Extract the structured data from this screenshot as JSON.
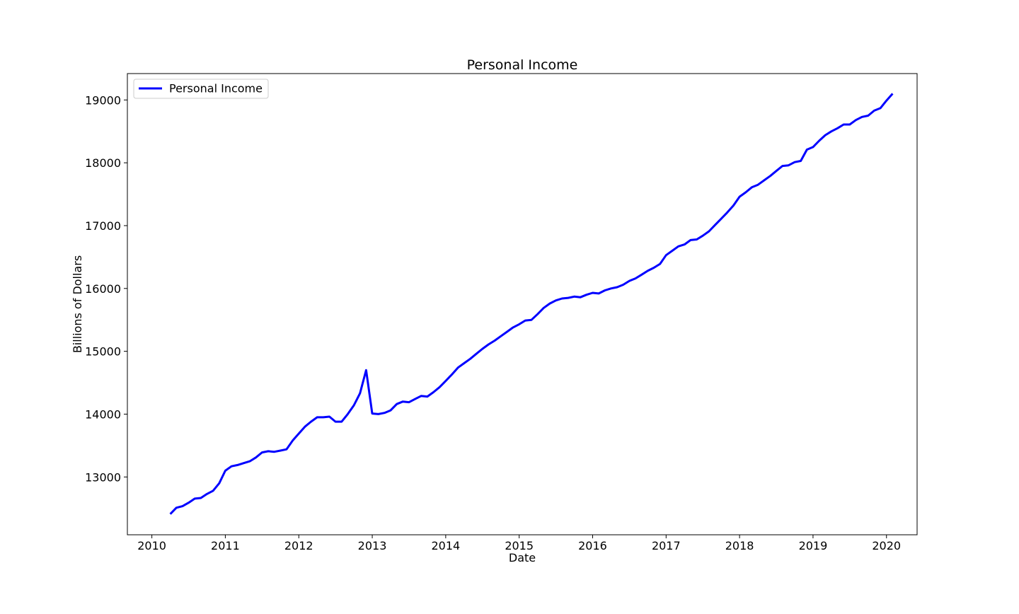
{
  "chart_data": {
    "type": "line",
    "title": "Personal Income",
    "xlabel": "Date",
    "ylabel": "Billions of Dollars",
    "x_ticks": [
      "2010",
      "2011",
      "2012",
      "2013",
      "2014",
      "2015",
      "2016",
      "2017",
      "2018",
      "2019",
      "2020"
    ],
    "y_ticks": [
      "13000",
      "14000",
      "15000",
      "16000",
      "17000",
      "18000",
      "19000"
    ],
    "xlim": [
      "2009-09",
      "2020-06"
    ],
    "ylim": [
      12080,
      19420
    ],
    "grid": false,
    "legend_position": "top-left",
    "series": [
      {
        "name": "Personal Income",
        "color": "#0000ff",
        "x": [
          "2010-04",
          "2010-05",
          "2010-06",
          "2010-07",
          "2010-08",
          "2010-09",
          "2010-10",
          "2010-11",
          "2010-12",
          "2011-01",
          "2011-02",
          "2011-03",
          "2011-04",
          "2011-05",
          "2011-06",
          "2011-07",
          "2011-08",
          "2011-09",
          "2011-10",
          "2011-11",
          "2011-12",
          "2012-01",
          "2012-02",
          "2012-03",
          "2012-04",
          "2012-05",
          "2012-06",
          "2012-07",
          "2012-08",
          "2012-09",
          "2012-10",
          "2012-11",
          "2012-12",
          "2013-01",
          "2013-02",
          "2013-03",
          "2013-04",
          "2013-05",
          "2013-06",
          "2013-07",
          "2013-08",
          "2013-09",
          "2013-10",
          "2013-11",
          "2013-12",
          "2014-01",
          "2014-02",
          "2014-03",
          "2014-04",
          "2014-05",
          "2014-06",
          "2014-07",
          "2014-08",
          "2014-09",
          "2014-10",
          "2014-11",
          "2014-12",
          "2015-01",
          "2015-02",
          "2015-03",
          "2015-04",
          "2015-05",
          "2015-06",
          "2015-07",
          "2015-08",
          "2015-09",
          "2015-10",
          "2015-11",
          "2015-12",
          "2016-01",
          "2016-02",
          "2016-03",
          "2016-04",
          "2016-05",
          "2016-06",
          "2016-07",
          "2016-08",
          "2016-09",
          "2016-10",
          "2016-11",
          "2016-12",
          "2017-01",
          "2017-02",
          "2017-03",
          "2017-04",
          "2017-05",
          "2017-06",
          "2017-07",
          "2017-08",
          "2017-09",
          "2017-10",
          "2017-11",
          "2017-12",
          "2018-01",
          "2018-02",
          "2018-03",
          "2018-04",
          "2018-05",
          "2018-06",
          "2018-07",
          "2018-08",
          "2018-09",
          "2018-10",
          "2018-11",
          "2018-12",
          "2019-01",
          "2019-02",
          "2019-03",
          "2019-04",
          "2019-05",
          "2019-06",
          "2019-07",
          "2019-08",
          "2019-09",
          "2019-10",
          "2019-11",
          "2019-12",
          "2020-01",
          "2020-02"
        ],
        "values": [
          12410,
          12510,
          12535,
          12590,
          12655,
          12665,
          12730,
          12780,
          12900,
          13100,
          13170,
          13190,
          13220,
          13250,
          13310,
          13390,
          13410,
          13400,
          13420,
          13440,
          13580,
          13690,
          13800,
          13880,
          13950,
          13950,
          13960,
          13880,
          13880,
          14000,
          14140,
          14330,
          14700,
          14010,
          14000,
          14020,
          14060,
          14160,
          14200,
          14190,
          14240,
          14290,
          14280,
          14350,
          14430,
          14530,
          14630,
          14740,
          14810,
          14880,
          14960,
          15040,
          15110,
          15170,
          15240,
          15310,
          15380,
          15430,
          15490,
          15500,
          15590,
          15690,
          15760,
          15810,
          15840,
          15850,
          15870,
          15860,
          15900,
          15930,
          15920,
          15970,
          16000,
          16020,
          16060,
          16120,
          16160,
          16220,
          16280,
          16330,
          16390,
          16530,
          16600,
          16670,
          16700,
          16770,
          16780,
          16840,
          16910,
          17010,
          17110,
          17210,
          17320,
          17460,
          17530,
          17610,
          17650,
          17720,
          17790,
          17870,
          17950,
          17960,
          18010,
          18030,
          18210,
          18250,
          18350,
          18440,
          18500,
          18550,
          18610,
          18610,
          18680,
          18730,
          18750,
          18830,
          18870,
          18990,
          19100
        ]
      }
    ]
  }
}
